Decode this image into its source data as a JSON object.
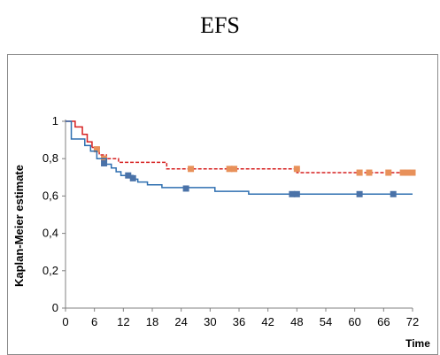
{
  "chart_data": {
    "type": "line",
    "title": "EFS",
    "xlabel": "Time",
    "ylabel": "Kaplan-Meier estimate",
    "xlim": [
      0,
      72
    ],
    "ylim": [
      0,
      1
    ],
    "x_ticks": [
      "0",
      "6",
      "12",
      "18",
      "24",
      "30",
      "36",
      "42",
      "48",
      "54",
      "60",
      "66",
      "72"
    ],
    "y_ticks": [
      "0",
      "0,2",
      "0,4",
      "0,6",
      "0,8",
      "1"
    ],
    "grid": false,
    "series": [
      {
        "color": "#d62020",
        "style": "dashed-after-first-event",
        "steps": [
          [
            0,
            1.0
          ],
          [
            2,
            0.97
          ],
          [
            3.5,
            0.93
          ],
          [
            4.5,
            0.89
          ],
          [
            5.5,
            0.86
          ],
          [
            7,
            0.82
          ],
          [
            8.5,
            0.8
          ],
          [
            11,
            0.78
          ],
          [
            21,
            0.745
          ],
          [
            48,
            0.725
          ],
          [
            72,
            0.725
          ]
        ],
        "censored": [
          [
            6.5,
            0.85
          ],
          [
            8,
            0.8
          ],
          [
            26,
            0.745
          ],
          [
            34,
            0.745
          ],
          [
            35,
            0.745
          ],
          [
            48,
            0.745
          ],
          [
            61,
            0.725
          ],
          [
            63,
            0.725
          ],
          [
            67,
            0.725
          ],
          [
            70,
            0.725
          ],
          [
            71,
            0.725
          ],
          [
            72,
            0.725
          ]
        ]
      },
      {
        "color": "#2e6fb0",
        "style": "solid",
        "steps": [
          [
            0,
            1.0
          ],
          [
            1.2,
            0.905
          ],
          [
            4,
            0.87
          ],
          [
            5.2,
            0.84
          ],
          [
            6.5,
            0.8
          ],
          [
            8.5,
            0.77
          ],
          [
            9.5,
            0.75
          ],
          [
            10.5,
            0.73
          ],
          [
            11.5,
            0.71
          ],
          [
            14,
            0.69
          ],
          [
            15,
            0.675
          ],
          [
            17,
            0.66
          ],
          [
            20,
            0.645
          ],
          [
            31,
            0.625
          ],
          [
            38,
            0.61
          ],
          [
            72,
            0.61
          ]
        ],
        "censored": [
          [
            8,
            0.775
          ],
          [
            13,
            0.71
          ],
          [
            14,
            0.695
          ],
          [
            25,
            0.64
          ],
          [
            47,
            0.61
          ],
          [
            48,
            0.61
          ],
          [
            61,
            0.61
          ],
          [
            68,
            0.61
          ]
        ]
      }
    ]
  }
}
